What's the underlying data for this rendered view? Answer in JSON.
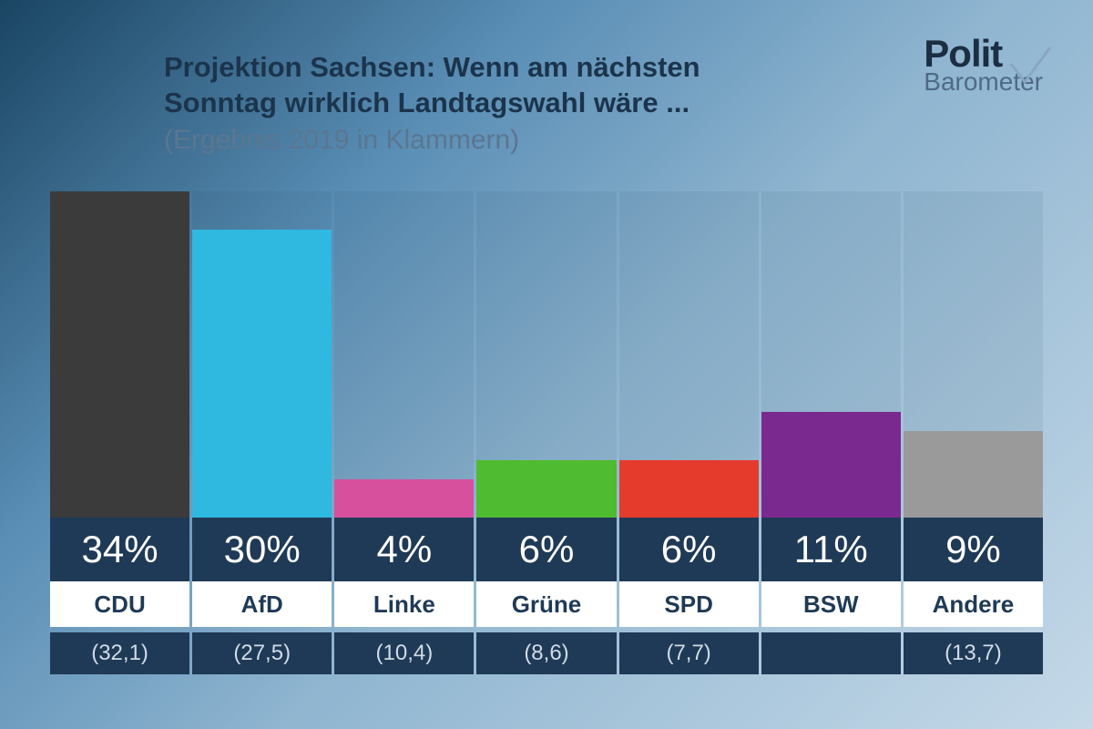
{
  "header": {
    "title_line1": "Projektion Sachsen: Wenn am nächsten",
    "title_line2": "Sonntag wirklich Landtagswahl wäre ...",
    "subtitle": "(Ergebnis 2019 in Klammern)"
  },
  "logo": {
    "line1_a": "P",
    "line1_b": "olit",
    "line2": "Barometer",
    "check_color": "#8aa6c0"
  },
  "chart": {
    "type": "bar",
    "max_value": 34,
    "value_suffix": "%",
    "strip_bg": "#1f3a56",
    "strip_text": "#ffffff",
    "name_bg": "#ffffff",
    "name_text": "#1f3a56",
    "prev_bg": "#1f3a56",
    "prev_text": "#d0dbe6",
    "grid_bg": "rgba(30,60,90,0.08)",
    "parties": [
      {
        "name": "CDU",
        "value": 34,
        "prev": "(32,1)",
        "color": "#3b3b3b"
      },
      {
        "name": "AfD",
        "value": 30,
        "prev": "(27,5)",
        "color": "#2fb8e0"
      },
      {
        "name": "Linke",
        "value": 4,
        "prev": "(10,4)",
        "color": "#d6509e"
      },
      {
        "name": "Grüne",
        "value": 6,
        "prev": "(8,6)",
        "color": "#4fbb30"
      },
      {
        "name": "SPD",
        "value": 6,
        "prev": "(7,7)",
        "color": "#e43b2d"
      },
      {
        "name": "BSW",
        "value": 11,
        "prev": "",
        "color": "#7a2a8f"
      },
      {
        "name": "Andere",
        "value": 9,
        "prev": "(13,7)",
        "color": "#9a9a9a"
      }
    ]
  }
}
